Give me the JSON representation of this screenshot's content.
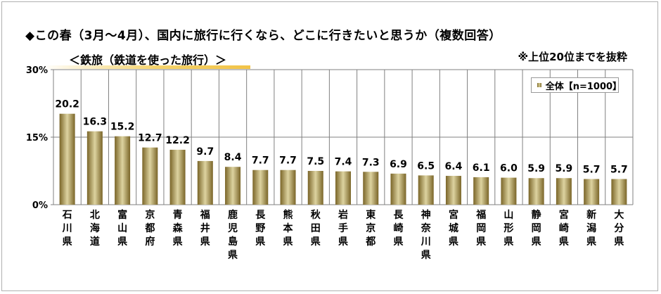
{
  "title": "◆この春（3月～4月）、国内に旅行に行くなら、どこに行きたいと思うか（複数回答）",
  "subtitle": "＜鉄旅（鉄道を使った旅行）＞",
  "note": "※上位20位までを抜粋",
  "legend": "全体【n=1000】",
  "colors": {
    "bar_dark": "#7a6528",
    "bar_light": "#ddd3a0",
    "grid": "#808080",
    "subtitle_highlight": "#f2c347"
  },
  "chart_data": {
    "type": "bar",
    "title": "◆この春（3月～4月）、国内に旅行に行くなら、どこに行きたいと思うか（複数回答）",
    "ylim": [
      0,
      30
    ],
    "yticks": [
      "0%",
      "15%",
      "30%"
    ],
    "ytick_values": [
      0,
      15,
      30
    ],
    "legend_position": "top-right",
    "categories": [
      "石川県",
      "北海道",
      "富山県",
      "京都府",
      "青森県",
      "福井県",
      "鹿児島県",
      "長野県",
      "熊本県",
      "秋田県",
      "岩手県",
      "東京都",
      "長崎県",
      "神奈川県",
      "宮城県",
      "福岡県",
      "山形県",
      "静岡県",
      "宮崎県",
      "新潟県",
      "大分県"
    ],
    "series": [
      {
        "name": "全体【n=1000】",
        "values": [
          20.2,
          16.3,
          15.2,
          12.7,
          12.2,
          9.7,
          8.4,
          7.7,
          7.7,
          7.5,
          7.4,
          7.3,
          6.9,
          6.5,
          6.4,
          6.1,
          6.0,
          5.9,
          5.9,
          5.7,
          5.7
        ]
      }
    ],
    "value_labels": [
      "20.2",
      "16.3",
      "15.2",
      "12.7",
      "12.2",
      "9.7",
      "8.4",
      "7.7",
      "7.7",
      "7.5",
      "7.4",
      "7.3",
      "6.9",
      "6.5",
      "6.4",
      "6.1",
      "6.0",
      "5.9",
      "5.9",
      "5.7",
      "5.7"
    ]
  }
}
